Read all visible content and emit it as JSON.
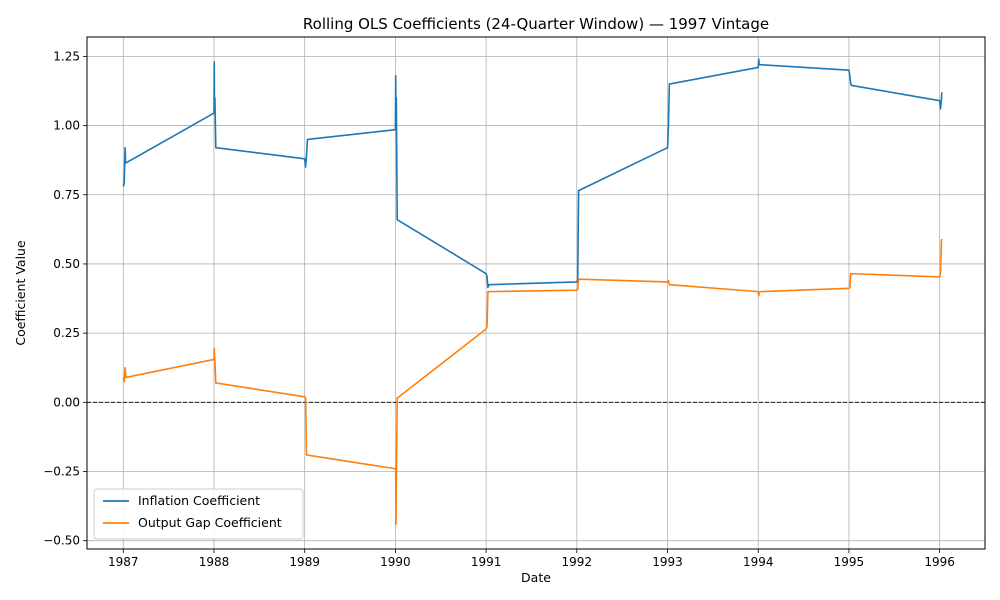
{
  "chart_data": {
    "type": "line",
    "title": "Rolling OLS Coefficients (24-Quarter Window) — 1997 Vintage",
    "xlabel": "Date",
    "ylabel": "Coefficient Value",
    "xlim": [
      1986.6,
      1996.5
    ],
    "ylim": [
      -0.53,
      1.32
    ],
    "x_ticks": [
      1987,
      1988,
      1989,
      1990,
      1991,
      1992,
      1993,
      1994,
      1995,
      1996
    ],
    "x_tick_labels": [
      "1987",
      "1988",
      "1989",
      "1990",
      "1991",
      "1992",
      "1993",
      "1994",
      "1995",
      "1996"
    ],
    "y_ticks": [
      -0.5,
      -0.25,
      0.0,
      0.25,
      0.5,
      0.75,
      1.0,
      1.25
    ],
    "y_tick_labels": [
      "−0.50",
      "−0.25",
      "0.00",
      "0.25",
      "0.50",
      "0.75",
      "1.00",
      "1.25"
    ],
    "grid": true,
    "reference_line": {
      "y": 0.0,
      "style": "dashed",
      "color": "#000000"
    },
    "legend_position": "lower-left",
    "series": [
      {
        "name": "Inflation Coefficient",
        "color": "#1f77b4",
        "x": [
          1987.0,
          1987.01,
          1987.02,
          1987.025,
          1987.03,
          1988.0,
          1988.003,
          1988.006,
          1988.01,
          1988.02,
          1989.0,
          1989.01,
          1989.02,
          1989.03,
          1990.0,
          1990.003,
          1990.006,
          1990.01,
          1990.02,
          1991.0,
          1991.01,
          1991.02,
          1991.03,
          1992.0,
          1992.01,
          1992.02,
          1993.0,
          1993.01,
          1993.02,
          1994.0,
          1994.006,
          1994.01,
          1994.02,
          1995.0,
          1995.01,
          1995.02,
          1995.03,
          1996.0,
          1996.01,
          1996.02,
          1996.025
        ],
        "y": [
          0.78,
          0.79,
          0.92,
          0.87,
          0.865,
          1.045,
          1.23,
          1.05,
          1.1,
          0.92,
          0.88,
          0.85,
          0.89,
          0.95,
          0.985,
          1.18,
          1.0,
          1.1,
          0.66,
          0.465,
          0.455,
          0.415,
          0.425,
          0.435,
          0.445,
          0.765,
          0.92,
          1.0,
          1.15,
          1.21,
          1.24,
          1.22,
          1.22,
          1.2,
          1.18,
          1.15,
          1.145,
          1.09,
          1.06,
          1.1,
          1.12
        ]
      },
      {
        "name": "Output Gap Coefficient",
        "color": "#ff7f0e",
        "x": [
          1987.0,
          1987.01,
          1987.02,
          1987.03,
          1988.0,
          1988.003,
          1988.006,
          1988.01,
          1988.02,
          1989.0,
          1989.01,
          1989.02,
          1990.0,
          1990.003,
          1990.006,
          1990.01,
          1990.02,
          1991.0,
          1991.01,
          1991.02,
          1992.0,
          1992.01,
          1992.02,
          1993.0,
          1993.01,
          1993.02,
          1994.0,
          1994.006,
          1994.01,
          1994.02,
          1995.0,
          1995.01,
          1995.02,
          1996.0,
          1996.01,
          1996.02,
          1996.025
        ],
        "y": [
          0.09,
          0.075,
          0.125,
          0.09,
          0.155,
          0.195,
          0.17,
          0.15,
          0.07,
          0.02,
          0.015,
          -0.19,
          -0.24,
          -0.245,
          -0.44,
          -0.3,
          0.015,
          0.265,
          0.275,
          0.4,
          0.405,
          0.41,
          0.445,
          0.435,
          0.44,
          0.425,
          0.4,
          0.385,
          0.395,
          0.4,
          0.412,
          0.415,
          0.465,
          0.453,
          0.47,
          0.585,
          0.59
        ]
      }
    ]
  }
}
